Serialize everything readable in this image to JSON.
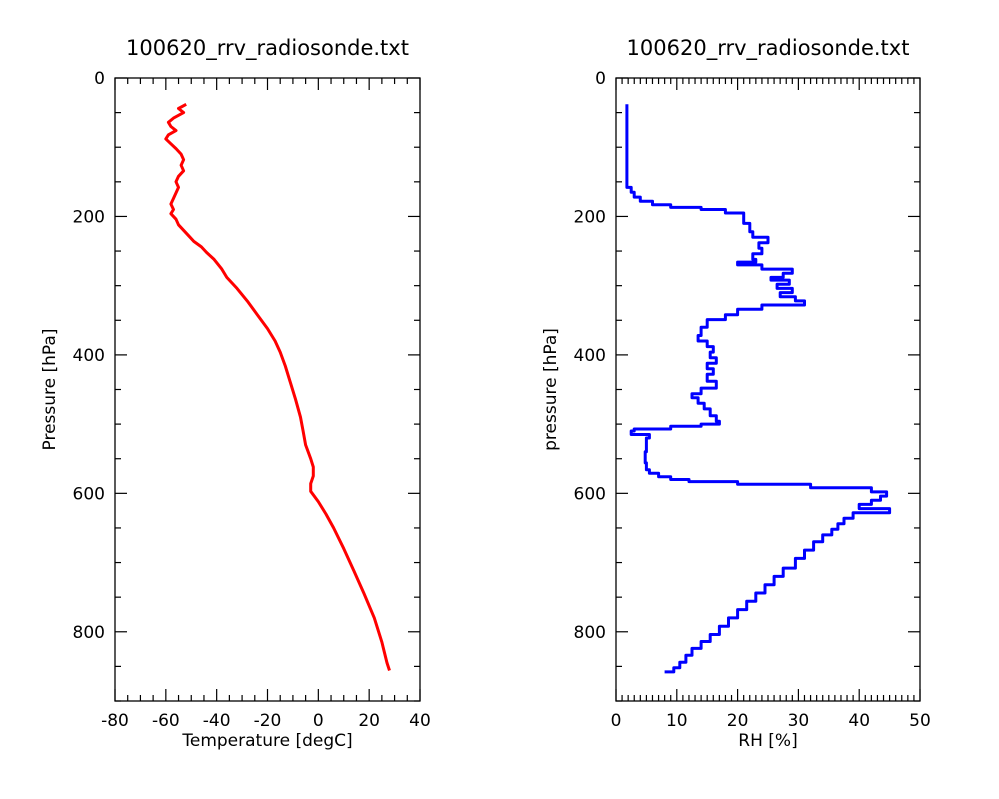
{
  "chart_data": [
    {
      "type": "line",
      "title": "100620_rrv_radiosonde.txt",
      "xlabel": "Temperature [degC]",
      "ylabel": "Pressure [hPa]",
      "xlim": [
        -80,
        40
      ],
      "ylim": [
        900,
        0
      ],
      "y_inverted": true,
      "grid": false,
      "x_ticks": [
        "-80",
        "-60",
        "-40",
        "-20",
        "0",
        "20",
        "40"
      ],
      "y_ticks": [
        "0",
        "200",
        "400",
        "600",
        "800"
      ],
      "series": [
        {
          "color": "#ff0000",
          "points": [
            [
              -52,
              38
            ],
            [
              -55,
              44
            ],
            [
              -53,
              50
            ],
            [
              -57,
              58
            ],
            [
              -59,
              64
            ],
            [
              -58,
              70
            ],
            [
              -56,
              76
            ],
            [
              -59,
              82
            ],
            [
              -60,
              88
            ],
            [
              -58,
              95
            ],
            [
              -56,
              102
            ],
            [
              -54,
              110
            ],
            [
              -53,
              118
            ],
            [
              -54,
              126
            ],
            [
              -53,
              134
            ],
            [
              -55,
              142
            ],
            [
              -56,
              150
            ],
            [
              -55,
              158
            ],
            [
              -56,
              166
            ],
            [
              -57,
              174
            ],
            [
              -58,
              182
            ],
            [
              -57,
              190
            ],
            [
              -58,
              196
            ],
            [
              -56,
              204
            ],
            [
              -55,
              212
            ],
            [
              -53,
              220
            ],
            [
              -51,
              228
            ],
            [
              -49,
              236
            ],
            [
              -46,
              244
            ],
            [
              -44,
              252
            ],
            [
              -41,
              262
            ],
            [
              -38,
              276
            ],
            [
              -36,
              288
            ],
            [
              -32,
              304
            ],
            [
              -28,
              322
            ],
            [
              -24,
              342
            ],
            [
              -20,
              362
            ],
            [
              -17,
              380
            ],
            [
              -15,
              396
            ],
            [
              -13,
              416
            ],
            [
              -11,
              440
            ],
            [
              -9,
              464
            ],
            [
              -7,
              490
            ],
            [
              -6,
              510
            ],
            [
              -5,
              530
            ],
            [
              -3,
              550
            ],
            [
              -2,
              562
            ],
            [
              -2,
              575
            ],
            [
              -3,
              586
            ],
            [
              -3,
              597
            ],
            [
              0,
              612
            ],
            [
              3,
              630
            ],
            [
              6,
              650
            ],
            [
              10,
              680
            ],
            [
              14,
              712
            ],
            [
              18,
              745
            ],
            [
              22,
              780
            ],
            [
              25,
              815
            ],
            [
              27,
              845
            ],
            [
              28,
              856
            ]
          ]
        }
      ]
    },
    {
      "type": "line",
      "title": "100620_rrv_radiosonde.txt",
      "xlabel": "RH [%]",
      "ylabel": "pressure [hPa]",
      "xlim": [
        0,
        50
      ],
      "ylim": [
        900,
        0
      ],
      "y_inverted": true,
      "grid": false,
      "x_ticks": [
        "0",
        "10",
        "20",
        "30",
        "40",
        "50"
      ],
      "y_ticks": [
        "0",
        "200",
        "400",
        "600",
        "800"
      ],
      "series": [
        {
          "color": "#0000ff",
          "step": true,
          "points": [
            [
              1.8,
              38
            ],
            [
              1.8,
              152
            ],
            [
              2.5,
              158
            ],
            [
              3.0,
              165
            ],
            [
              4.0,
              172
            ],
            [
              6.0,
              178
            ],
            [
              9.0,
              183
            ],
            [
              14.0,
              187
            ],
            [
              18.0,
              190
            ],
            [
              21.0,
              195
            ],
            [
              22.0,
              210
            ],
            [
              22.5,
              222
            ],
            [
              25.0,
              230
            ],
            [
              23.5,
              238
            ],
            [
              24.0,
              246
            ],
            [
              22.5,
              254
            ],
            [
              23.0,
              262
            ],
            [
              20.0,
              266
            ],
            [
              24.0,
              270
            ],
            [
              29.0,
              276
            ],
            [
              27.5,
              282
            ],
            [
              25.5,
              288
            ],
            [
              28.5,
              292
            ],
            [
              26.5,
              298
            ],
            [
              29.0,
              304
            ],
            [
              27.0,
              310
            ],
            [
              29.5,
              316
            ],
            [
              31.0,
              322
            ],
            [
              24.0,
              328
            ],
            [
              20.0,
              334
            ],
            [
              18.0,
              342
            ],
            [
              15.0,
              349
            ],
            [
              14.0,
              360
            ],
            [
              13.5,
              372
            ],
            [
              15.0,
              380
            ],
            [
              16.0,
              388
            ],
            [
              15.5,
              396
            ],
            [
              16.5,
              404
            ],
            [
              15.0,
              412
            ],
            [
              16.0,
              420
            ],
            [
              15.0,
              428
            ],
            [
              16.5,
              438
            ],
            [
              14.0,
              448
            ],
            [
              12.5,
              456
            ],
            [
              13.5,
              462
            ],
            [
              14.5,
              470
            ],
            [
              15.5,
              478
            ],
            [
              16.5,
              488
            ],
            [
              17.0,
              496
            ],
            [
              14.0,
              500
            ],
            [
              9.0,
              503
            ],
            [
              3.0,
              507
            ],
            [
              2.5,
              510
            ],
            [
              5.5,
              515
            ],
            [
              5.0,
              520
            ],
            [
              4.8,
              540
            ],
            [
              5.0,
              556
            ],
            [
              5.5,
              566
            ],
            [
              7.0,
              571
            ],
            [
              9.0,
              576
            ],
            [
              12.0,
              580
            ],
            [
              20.0,
              583
            ],
            [
              32.0,
              587
            ],
            [
              42.0,
              592
            ],
            [
              44.5,
              598
            ],
            [
              43.5,
              604
            ],
            [
              42.0,
              610
            ],
            [
              40.0,
              616
            ],
            [
              45.0,
              622
            ],
            [
              39.0,
              628
            ],
            [
              37.5,
              636
            ],
            [
              36.5,
              644
            ],
            [
              35.5,
              652
            ],
            [
              34.0,
              660
            ],
            [
              32.5,
              670
            ],
            [
              31.0,
              682
            ],
            [
              29.5,
              694
            ],
            [
              27.5,
              708
            ],
            [
              26.0,
              720
            ],
            [
              24.5,
              732
            ],
            [
              23.0,
              744
            ],
            [
              21.5,
              756
            ],
            [
              20.0,
              768
            ],
            [
              18.5,
              780
            ],
            [
              17.0,
              792
            ],
            [
              15.5,
              804
            ],
            [
              14.0,
              814
            ],
            [
              12.5,
              824
            ],
            [
              11.5,
              834
            ],
            [
              10.5,
              844
            ],
            [
              9.5,
              852
            ],
            [
              8.0,
              858
            ]
          ]
        }
      ]
    }
  ]
}
